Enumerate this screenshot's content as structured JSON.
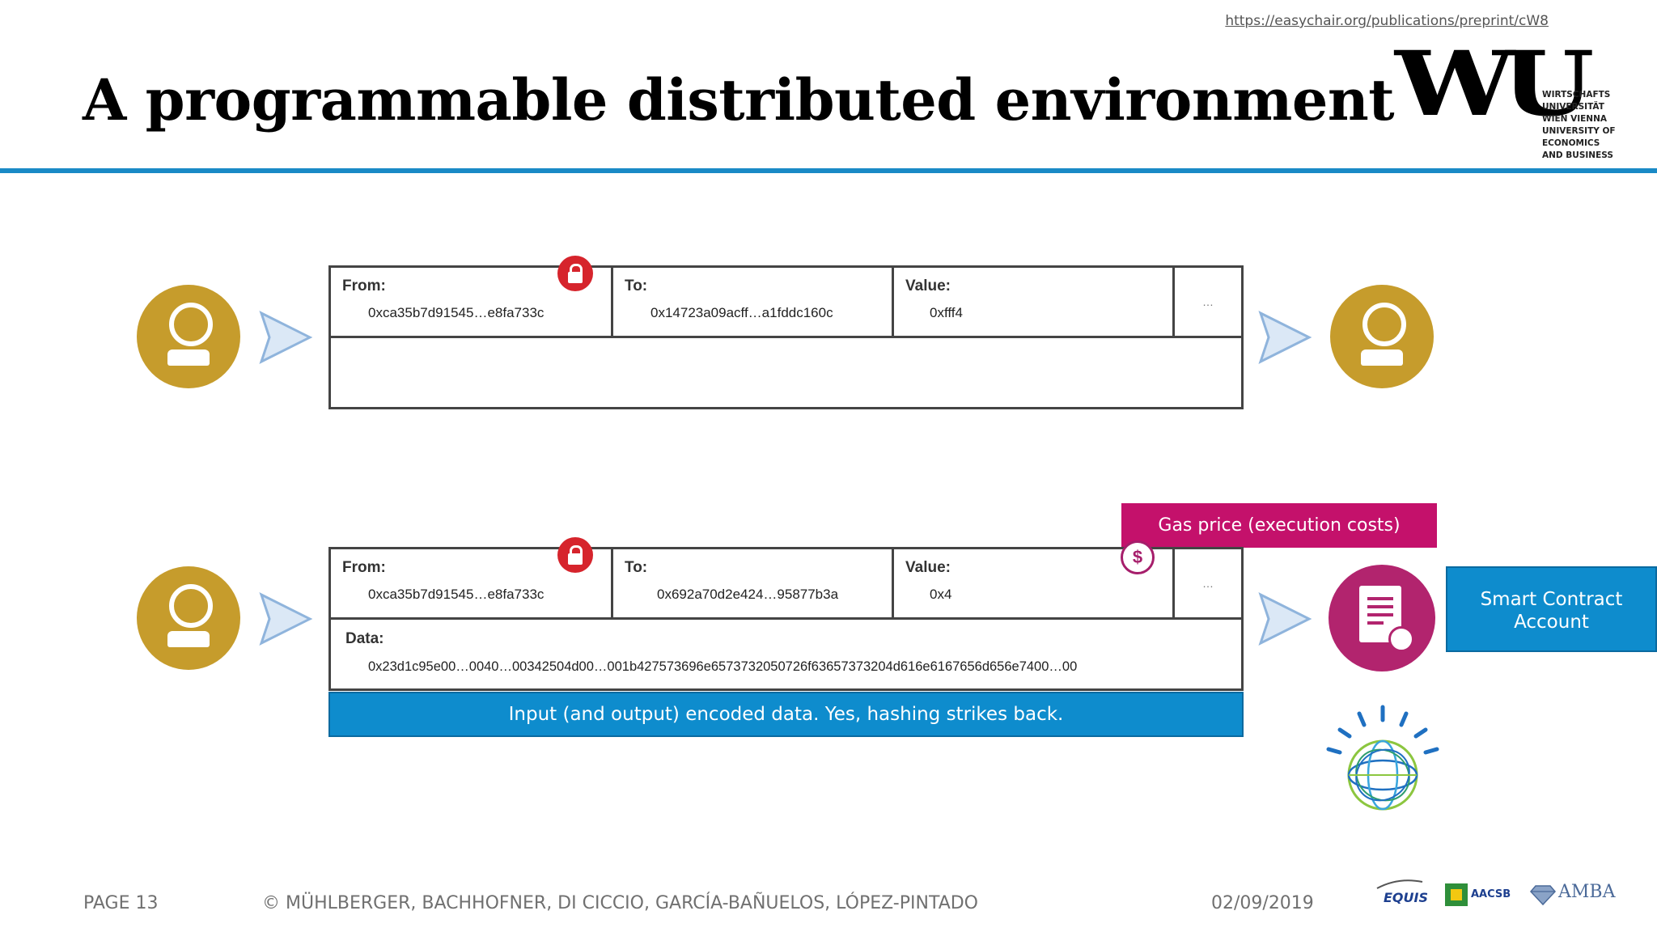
{
  "header": {
    "url": "https://easychair.org/publications/preprint/cW8",
    "title": "A programmable distributed environment",
    "logo": {
      "letters": "WU",
      "lines": [
        "WIRTSCHAFTS",
        "UNIVERSITÄT",
        "WIEN VIENNA",
        "UNIVERSITY OF",
        "ECONOMICS",
        "AND BUSINESS"
      ]
    }
  },
  "transaction1": {
    "from_label": "From:",
    "from_value": "0xca35b7d91545…e8fa733c",
    "to_label": "To:",
    "to_value": "0x14723a09acff…a1fddc160c",
    "value_label": "Value:",
    "value_value": "0xfff4",
    "more": "…"
  },
  "transaction2": {
    "from_label": "From:",
    "from_value": "0xca35b7d91545…e8fa733c",
    "to_label": "To:",
    "to_value": "0x692a70d2e424…95877b3a",
    "value_label": "Value:",
    "value_value": "0x4",
    "more": "…",
    "data_label": "Data:",
    "data_value": "0x23d1c95e00…0040…00342504d00…001b427573696e6573732050726f63657373204d616e6167656d656e7400…00"
  },
  "callouts": {
    "encoded_data": "Input (and output) encoded data. Yes, hashing strikes back.",
    "gas_price": "Gas price (execution costs)",
    "smart_contract_line1": "Smart Contract",
    "smart_contract_line2": "Account"
  },
  "footer": {
    "page": "PAGE 13",
    "authors": "© MÜHLBERGER, BACHHOFNER, DI CICCIO, GARCÍA-BAÑUELOS, LÓPEZ-PINTADO",
    "date": "02/09/2019",
    "accreditation": [
      "EQUIS",
      "AACSB",
      "AMBA"
    ]
  },
  "colors": {
    "accent_blue": "#0e8ccd",
    "rule_blue": "#1a8ac6",
    "gold": "#c69c2c",
    "magenta": "#c4116b",
    "lock_red": "#d6242c"
  },
  "icons": [
    "user-icon",
    "arrow-right-icon",
    "lock-icon",
    "dollar-coin-icon",
    "contract-document-icon",
    "globe-network-icon"
  ]
}
